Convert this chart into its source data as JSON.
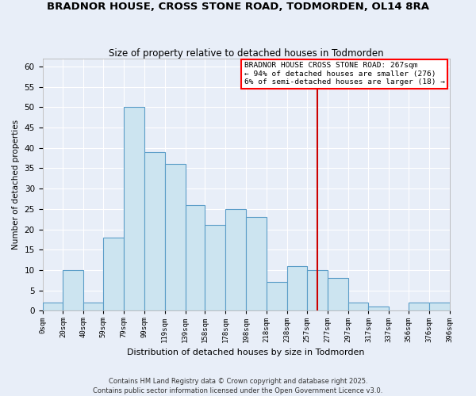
{
  "title": "BRADNOR HOUSE, CROSS STONE ROAD, TODMORDEN, OL14 8RA",
  "subtitle": "Size of property relative to detached houses in Todmorden",
  "xlabel": "Distribution of detached houses by size in Todmorden",
  "ylabel": "Number of detached properties",
  "bar_color": "#cce4f0",
  "bar_edge_color": "#5b9dc8",
  "background_color": "#e8eef8",
  "grid_color": "#ffffff",
  "bin_edges": [
    0,
    20,
    40,
    59,
    79,
    99,
    119,
    139,
    158,
    178,
    198,
    218,
    238,
    257,
    277,
    297,
    317,
    337,
    356,
    376,
    396
  ],
  "bin_labels": [
    "0sqm",
    "20sqm",
    "40sqm",
    "59sqm",
    "79sqm",
    "99sqm",
    "119sqm",
    "139sqm",
    "158sqm",
    "178sqm",
    "198sqm",
    "218sqm",
    "238sqm",
    "257sqm",
    "277sqm",
    "297sqm",
    "317sqm",
    "337sqm",
    "356sqm",
    "376sqm",
    "396sqm"
  ],
  "counts": [
    2,
    10,
    2,
    18,
    50,
    39,
    36,
    26,
    21,
    25,
    23,
    7,
    11,
    10,
    8,
    2,
    1,
    0,
    2,
    2
  ],
  "vline_x": 267,
  "vline_color": "#cc0000",
  "annotation_text": "BRADNOR HOUSE CROSS STONE ROAD: 267sqm\n← 94% of detached houses are smaller (276)\n6% of semi-detached houses are larger (18) →",
  "ylim": [
    0,
    62
  ],
  "yticks": [
    0,
    5,
    10,
    15,
    20,
    25,
    30,
    35,
    40,
    45,
    50,
    55,
    60
  ],
  "footnote1": "Contains HM Land Registry data © Crown copyright and database right 2025.",
  "footnote2": "Contains public sector information licensed under the Open Government Licence v3.0."
}
